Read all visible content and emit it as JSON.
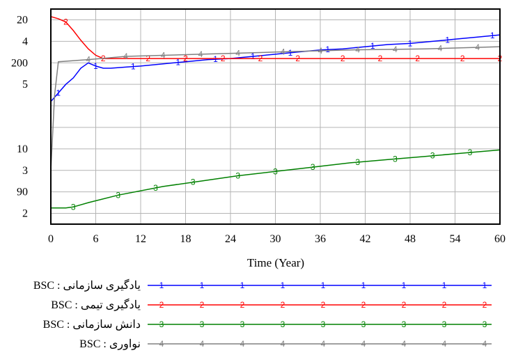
{
  "chart_data": {
    "type": "line",
    "xlabel": "Time (Year)",
    "x_ticks": [
      0,
      6,
      12,
      18,
      24,
      30,
      36,
      42,
      48,
      54,
      60
    ],
    "xlim": [
      0,
      60
    ],
    "y_tick_labels_top_to_bottom": [
      "20",
      "4",
      "200",
      "5",
      "",
      "",
      "10",
      "3",
      "90",
      "2"
    ],
    "grid": true,
    "legend_placement": "bottom",
    "series": [
      {
        "name": "BSC : یادگیری سازمانی",
        "marker": "1",
        "color": "#0000ff",
        "x": [
          0,
          1,
          2,
          3,
          4,
          5,
          6,
          7,
          8,
          10,
          12,
          15,
          18,
          21,
          24,
          27,
          30,
          33,
          36,
          39,
          42,
          45,
          48,
          51,
          54,
          57,
          60
        ],
        "y": [
          0.57,
          0.61,
          0.65,
          0.68,
          0.725,
          0.75,
          0.735,
          0.725,
          0.725,
          0.73,
          0.735,
          0.745,
          0.755,
          0.765,
          0.77,
          0.78,
          0.79,
          0.8,
          0.81,
          0.815,
          0.825,
          0.835,
          0.84,
          0.85,
          0.86,
          0.87,
          0.88
        ],
        "marker_x": [
          1,
          6,
          11,
          17,
          22,
          27,
          32,
          37,
          43,
          48,
          53,
          59
        ]
      },
      {
        "name": "BSC : یادگیری تیمی",
        "marker": "2",
        "color": "#ff0000",
        "x": [
          0,
          1,
          2,
          3,
          4,
          5,
          6,
          7,
          8,
          60
        ],
        "y": [
          0.965,
          0.955,
          0.94,
          0.9,
          0.855,
          0.815,
          0.785,
          0.77,
          0.77,
          0.77
        ],
        "marker_x": [
          2,
          7,
          13,
          18,
          23,
          28,
          33,
          39,
          44,
          49,
          55,
          60
        ]
      },
      {
        "name": "BSC : دانش سازمانی",
        "marker": "3",
        "color": "#008000",
        "x": [
          0,
          2,
          3,
          5,
          9,
          15,
          20,
          25,
          30,
          35,
          40,
          45,
          50,
          55,
          60
        ],
        "y": [
          0.075,
          0.075,
          0.08,
          0.1,
          0.135,
          0.175,
          0.2,
          0.225,
          0.245,
          0.265,
          0.285,
          0.3,
          0.315,
          0.33,
          0.345
        ],
        "marker_x": [
          3,
          9,
          14,
          19,
          25,
          30,
          35,
          41,
          46,
          51,
          56
        ]
      },
      {
        "name": "BSC : نواوری",
        "marker": "4",
        "color": "#808080",
        "x": [
          0,
          0.5,
          1,
          5,
          10,
          20,
          30,
          40,
          50,
          60
        ],
        "y": [
          0.25,
          0.6,
          0.755,
          0.765,
          0.78,
          0.79,
          0.8,
          0.81,
          0.815,
          0.825
        ],
        "marker_x": [
          5,
          10,
          15,
          20,
          25,
          31,
          36,
          41,
          46,
          52,
          57
        ]
      }
    ]
  }
}
